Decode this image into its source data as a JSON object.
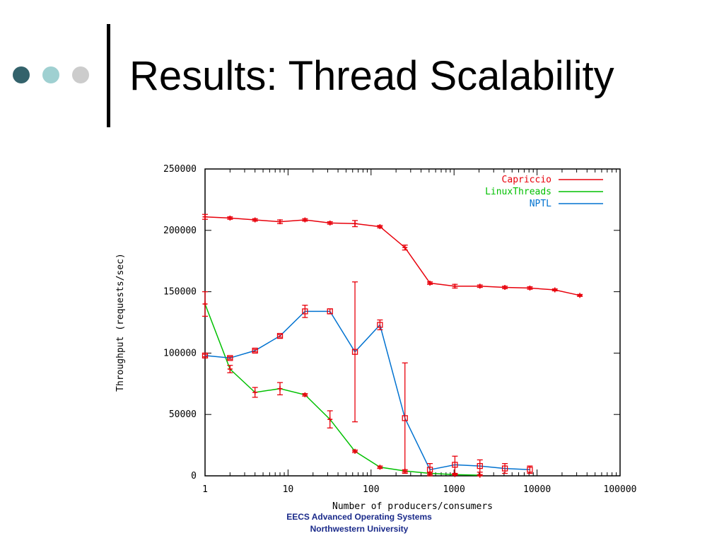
{
  "slide": {
    "title": "Results: Thread Scalability",
    "footer_line1": "EECS Advanced Operating Systems",
    "footer_line2": "Northwestern University",
    "bullet_colors": [
      "#33626b",
      "#9fd0d1",
      "#cccccc"
    ]
  },
  "chart_data": {
    "type": "line",
    "title": "",
    "xlabel": "Number of producers/consumers",
    "ylabel": "Throughput (requests/sec)",
    "x_scale": "log",
    "xlim": [
      1,
      100000
    ],
    "ylim": [
      0,
      250000
    ],
    "x_ticks": [
      1,
      10,
      100,
      1000,
      10000,
      100000
    ],
    "x_tick_labels": [
      "1",
      "10",
      "100",
      "1000",
      "10000",
      "100000"
    ],
    "y_ticks": [
      0,
      50000,
      100000,
      150000,
      200000,
      250000
    ],
    "y_tick_labels": [
      "0",
      "50000",
      "100000",
      "150000",
      "200000",
      "250000"
    ],
    "grid": false,
    "legend_position": "top-right",
    "series": [
      {
        "name": "Capriccio",
        "color": "#e8000b",
        "marker": "cross",
        "x": [
          1,
          2,
          4,
          8,
          16,
          32,
          64,
          128,
          256,
          512,
          1024,
          2048,
          4096,
          8192,
          16384,
          32768
        ],
        "y": [
          211000,
          210000,
          208500,
          207000,
          208500,
          206000,
          205500,
          203000,
          186000,
          157000,
          154500,
          154500,
          153500,
          153000,
          151500,
          147000
        ],
        "err": [
          2000,
          1000,
          1000,
          1500,
          1000,
          1000,
          2500,
          1000,
          2000,
          1000,
          1500,
          1000,
          1000,
          1000,
          800,
          800
        ]
      },
      {
        "name": "LinuxThreads",
        "color": "#00c000",
        "marker": "cross",
        "x": [
          1,
          2,
          4,
          8,
          16,
          32,
          64,
          128,
          256,
          512,
          1024,
          2048
        ],
        "y": [
          140000,
          87000,
          68000,
          71000,
          66000,
          46000,
          20000,
          7000,
          4000,
          2000,
          1000,
          500
        ],
        "err": [
          10000,
          3000,
          4000,
          5000,
          1000,
          7000,
          1000,
          1000,
          1000,
          1000,
          500,
          500
        ]
      },
      {
        "name": "NPTL",
        "color": "#0072d0",
        "marker": "box",
        "x": [
          1,
          2,
          4,
          8,
          16,
          32,
          64,
          128,
          256,
          512,
          1024,
          2048,
          4096,
          8192
        ],
        "y": [
          98000,
          96000,
          102000,
          114000,
          134000,
          134000,
          101000,
          123000,
          47000,
          5000,
          9000,
          8000,
          6000,
          5000
        ],
        "err": [
          1000,
          1000,
          1000,
          1000,
          5000,
          2000,
          57000,
          4000,
          45000,
          5000,
          7000,
          5000,
          4000,
          3000
        ]
      }
    ]
  }
}
